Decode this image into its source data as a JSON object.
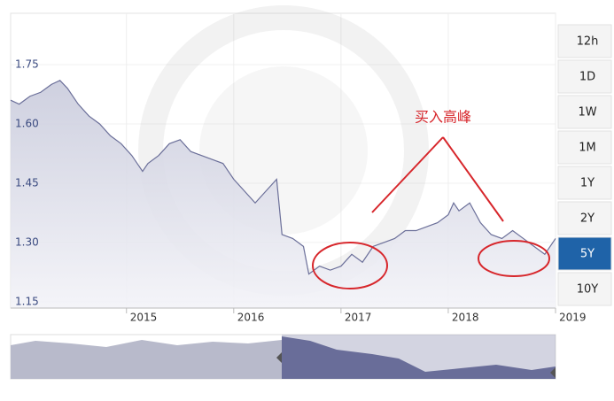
{
  "chart_data": {
    "type": "area",
    "annotation": "买入高峰",
    "x": [
      2013.92,
      2014.0,
      2014.1,
      2014.2,
      2014.3,
      2014.38,
      2014.45,
      2014.55,
      2014.65,
      2014.75,
      2014.85,
      2014.95,
      2015.05,
      2015.15,
      2015.2,
      2015.3,
      2015.4,
      2015.5,
      2015.6,
      2015.7,
      2015.8,
      2015.9,
      2016.0,
      2016.1,
      2016.2,
      2016.3,
      2016.4,
      2016.45,
      2016.55,
      2016.65,
      2016.7,
      2016.8,
      2016.9,
      2017.0,
      2017.1,
      2017.2,
      2017.3,
      2017.4,
      2017.5,
      2017.6,
      2017.7,
      2017.8,
      2017.9,
      2018.0,
      2018.05,
      2018.1,
      2018.2,
      2018.3,
      2018.4,
      2018.5,
      2018.6,
      2018.7,
      2018.8,
      2018.9,
      2019.0
    ],
    "values": [
      1.66,
      1.65,
      1.67,
      1.68,
      1.7,
      1.71,
      1.69,
      1.65,
      1.62,
      1.6,
      1.57,
      1.55,
      1.52,
      1.48,
      1.5,
      1.52,
      1.55,
      1.56,
      1.53,
      1.52,
      1.51,
      1.5,
      1.46,
      1.43,
      1.4,
      1.43,
      1.46,
      1.32,
      1.31,
      1.29,
      1.22,
      1.24,
      1.23,
      1.24,
      1.27,
      1.25,
      1.29,
      1.3,
      1.31,
      1.33,
      1.33,
      1.34,
      1.35,
      1.37,
      1.4,
      1.38,
      1.4,
      1.35,
      1.32,
      1.31,
      1.33,
      1.31,
      1.29,
      1.27,
      1.31
    ],
    "color": "#6b6f99",
    "xlim": [
      2013.92,
      2019.0
    ],
    "xticks": [
      2015,
      2016,
      2017,
      2018,
      2019
    ],
    "ylim": [
      1.134,
      1.88
    ],
    "yticks": [
      1.15,
      {
        "value": 1.3,
        "label": "1.30"
      },
      1.45,
      {
        "value": 1.6,
        "label": "1.60"
      },
      1.75
    ],
    "grid": true,
    "range_buttons": [
      "12h",
      "1D",
      "1W",
      "1M",
      "1Y",
      "2Y",
      "5Y",
      "10Y"
    ],
    "selected_range": "5Y"
  }
}
